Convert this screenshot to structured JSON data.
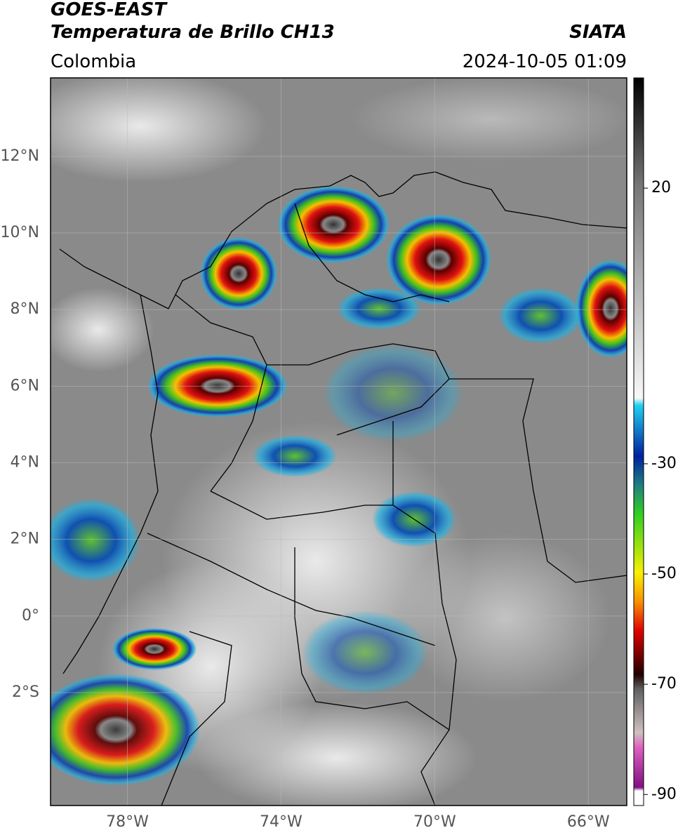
{
  "header": {
    "satellite": "GOES-EAST",
    "product": "Temperatura de Brillo CH13",
    "source": "SIATA",
    "region": "Colombia",
    "datetime": "2024-10-05 01:09"
  },
  "map": {
    "lonlim": [
      -80,
      -65
    ],
    "latlim": [
      -4.95,
      14.05
    ],
    "lat_ticks": [
      {
        "value": 12,
        "label": "12°N"
      },
      {
        "value": 10,
        "label": "10°N"
      },
      {
        "value": 8,
        "label": "8°N"
      },
      {
        "value": 6,
        "label": "6°N"
      },
      {
        "value": 4,
        "label": "4°N"
      },
      {
        "value": 2,
        "label": "2°N"
      },
      {
        "value": 0,
        "label": "0°"
      },
      {
        "value": -2,
        "label": "2°S"
      }
    ],
    "lon_ticks": [
      {
        "value": -78,
        "label": "78°W"
      },
      {
        "value": -74,
        "label": "74°W"
      },
      {
        "value": -70,
        "label": "70°W"
      },
      {
        "value": -66,
        "label": "66°W"
      }
    ]
  },
  "colorbar": {
    "range": [
      -92,
      40
    ],
    "ticks": [
      20,
      -30,
      -50,
      -70,
      -90
    ]
  }
}
